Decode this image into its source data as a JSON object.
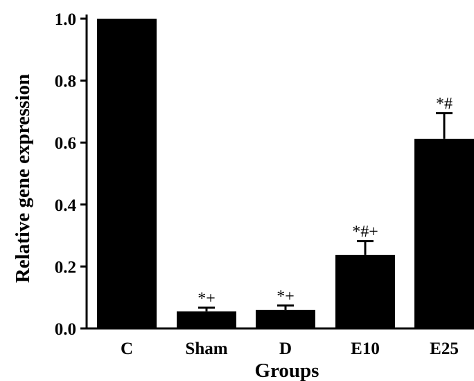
{
  "chart_data": {
    "type": "bar",
    "categories": [
      "C",
      "Sham",
      "D",
      "E10",
      "E25"
    ],
    "values": [
      1.0,
      0.055,
      0.06,
      0.237,
      0.612
    ],
    "errors": [
      0.0,
      0.012,
      0.014,
      0.045,
      0.083
    ],
    "annotations": [
      "",
      "*+",
      "*+",
      "*#+",
      "*#"
    ],
    "xlabel": "Groups",
    "ylabel": "Relative gene expression",
    "ylim": [
      0,
      1.0
    ],
    "yticks": [
      0.0,
      0.2,
      0.4,
      0.6,
      0.8,
      1.0
    ],
    "ytick_labels": [
      "0.0",
      "0.2",
      "0.4",
      "0.6",
      "0.8",
      "1.0"
    ],
    "grid": false,
    "bar_color": "#000000"
  }
}
